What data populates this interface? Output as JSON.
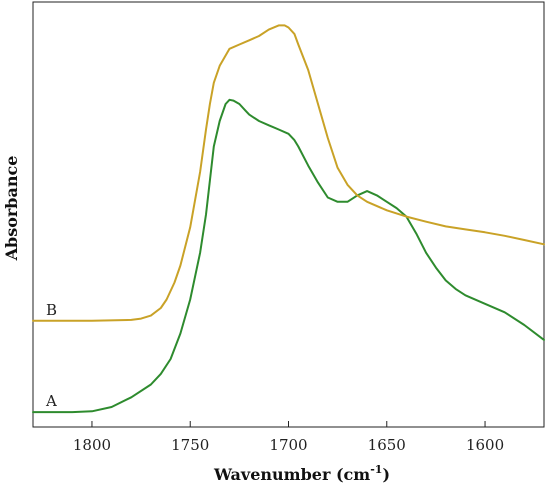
{
  "chart_data": {
    "type": "line",
    "title": "",
    "xlabel": "Wavenumber (cm",
    "xlabel_sup": "-1",
    "xlabel_close": ")",
    "ylabel": "Absorbance",
    "x_reversed": true,
    "xlim": [
      1830,
      1570
    ],
    "ylim": [
      0,
      1.0
    ],
    "grid": false,
    "y_ticks_shown": false,
    "x_ticks": [
      1800,
      1750,
      1700,
      1650,
      1600
    ],
    "x_tick_labels": [
      "1800",
      "1750",
      "1700",
      "1650",
      "1600"
    ],
    "series": [
      {
        "name": "A",
        "color": "#2e8b2e",
        "x": [
          1830,
          1810,
          1800,
          1790,
          1780,
          1770,
          1765,
          1760,
          1755,
          1750,
          1745,
          1742,
          1740,
          1738,
          1735,
          1732,
          1730,
          1728,
          1725,
          1722,
          1720,
          1715,
          1710,
          1705,
          1700,
          1697,
          1695,
          1690,
          1685,
          1680,
          1675,
          1670,
          1665,
          1660,
          1655,
          1650,
          1645,
          1640,
          1635,
          1630,
          1625,
          1620,
          1615,
          1610,
          1600,
          1590,
          1580,
          1570
        ],
        "y": [
          0.035,
          0.035,
          0.037,
          0.047,
          0.07,
          0.1,
          0.125,
          0.16,
          0.22,
          0.3,
          0.41,
          0.5,
          0.58,
          0.66,
          0.72,
          0.76,
          0.77,
          0.768,
          0.76,
          0.745,
          0.735,
          0.72,
          0.71,
          0.7,
          0.69,
          0.675,
          0.66,
          0.615,
          0.575,
          0.54,
          0.53,
          0.53,
          0.545,
          0.555,
          0.545,
          0.53,
          0.515,
          0.495,
          0.455,
          0.41,
          0.375,
          0.345,
          0.325,
          0.31,
          0.29,
          0.27,
          0.24,
          0.205
        ]
      },
      {
        "name": "B",
        "color": "#c9a227",
        "x": [
          1830,
          1800,
          1780,
          1775,
          1770,
          1765,
          1762,
          1758,
          1755,
          1750,
          1745,
          1742,
          1740,
          1738,
          1735,
          1730,
          1725,
          1720,
          1715,
          1710,
          1705,
          1702,
          1700,
          1697,
          1695,
          1690,
          1685,
          1680,
          1675,
          1670,
          1665,
          1660,
          1650,
          1640,
          1630,
          1620,
          1610,
          1600,
          1590,
          1580,
          1570
        ],
        "y": [
          0.25,
          0.25,
          0.252,
          0.255,
          0.262,
          0.28,
          0.3,
          0.34,
          0.38,
          0.47,
          0.6,
          0.7,
          0.76,
          0.81,
          0.85,
          0.89,
          0.9,
          0.91,
          0.92,
          0.935,
          0.945,
          0.945,
          0.94,
          0.925,
          0.9,
          0.84,
          0.76,
          0.68,
          0.61,
          0.57,
          0.545,
          0.53,
          0.51,
          0.495,
          0.483,
          0.472,
          0.465,
          0.458,
          0.45,
          0.44,
          0.43
        ]
      }
    ],
    "curve_labels": [
      {
        "text": "A",
        "series": "A"
      },
      {
        "text": "B",
        "series": "B"
      }
    ]
  }
}
